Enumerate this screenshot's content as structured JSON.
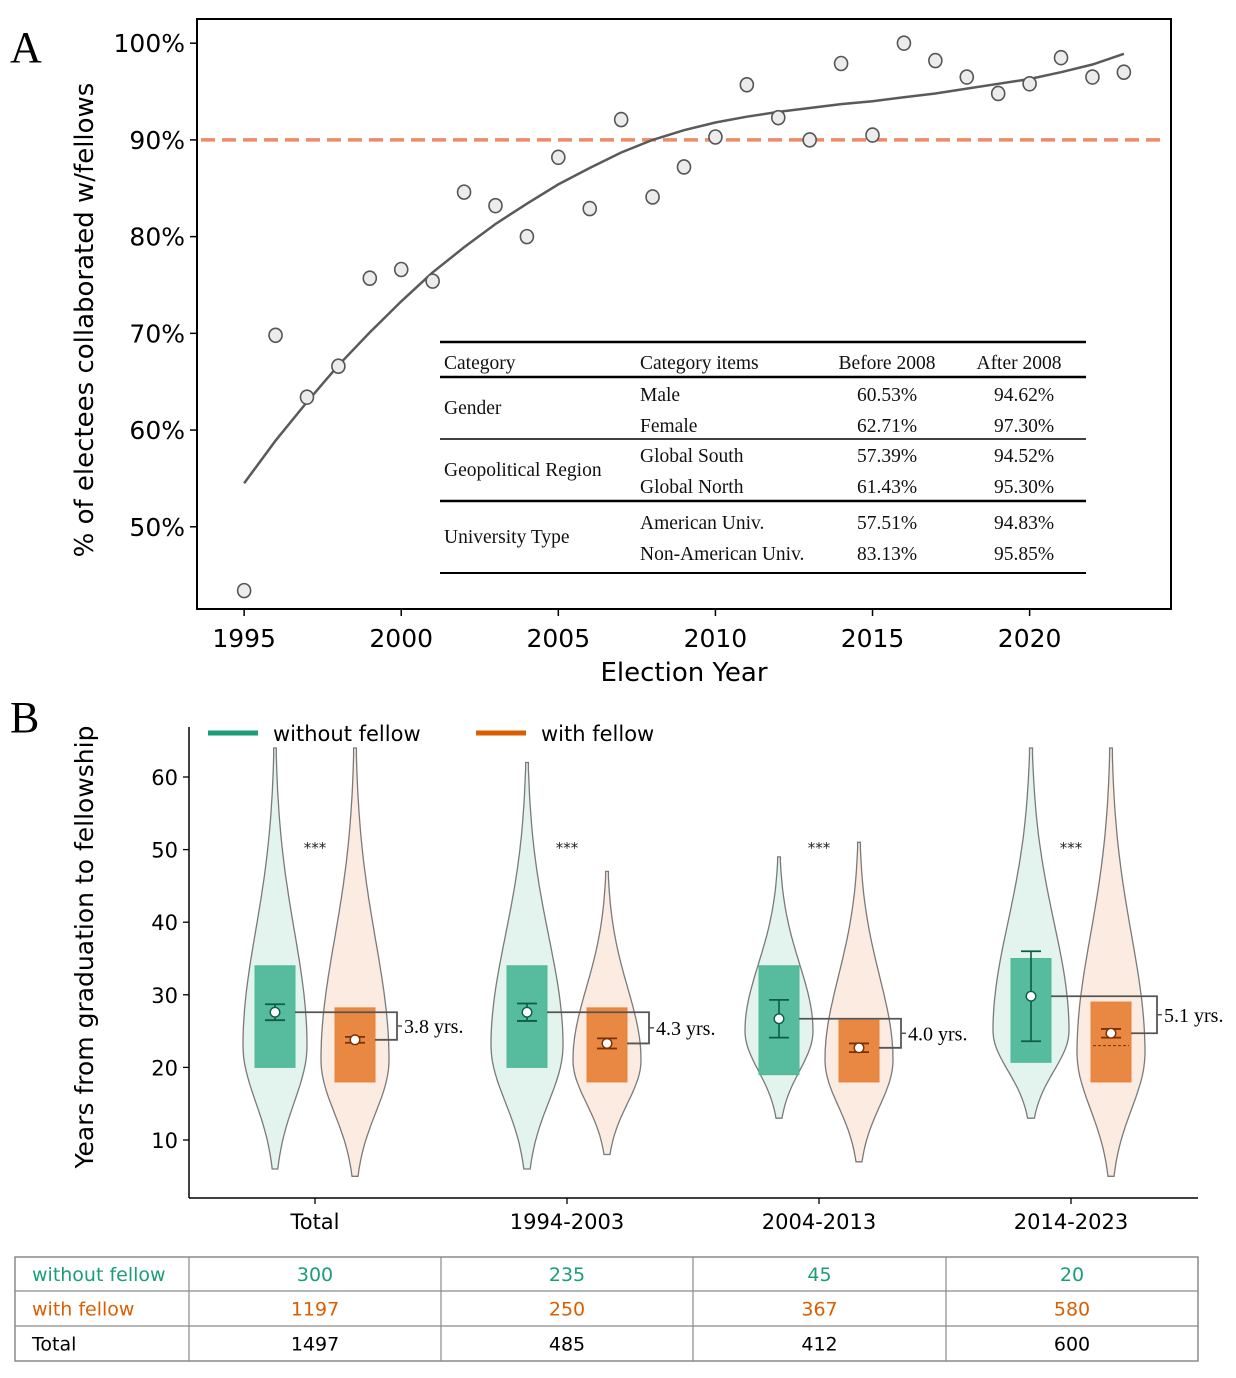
{
  "panel_labels": {
    "a": "A",
    "b": "B"
  },
  "colors": {
    "without_fellow": "#1b9e77",
    "with_fellow": "#d95f02",
    "without_box": "#4fb898",
    "with_box": "#e8833a",
    "without_violin": "#e3f3ee",
    "with_violin": "#fbebe0",
    "threshold": "#ee8a68",
    "trend": "#5a5a5a"
  },
  "chart_data": [
    {
      "id": "panel-a",
      "type": "scatter",
      "title": "",
      "xlabel": "Election Year",
      "ylabel": "% of electees collaborated w/fellows",
      "xlim": [
        1993.5,
        2024.5
      ],
      "ylim": [
        41.5,
        102.5
      ],
      "x_ticks": [
        1995,
        2000,
        2005,
        2010,
        2015,
        2020
      ],
      "y_ticks": [
        50,
        60,
        70,
        80,
        90,
        100
      ],
      "y_tick_labels": [
        "50%",
        "60%",
        "70%",
        "80%",
        "90%",
        "100%"
      ],
      "grid": false,
      "reference_line": {
        "y": 90,
        "style": "dashed"
      },
      "series": [
        {
          "name": "electees collaborated w/fellows",
          "x": [
            1995,
            1996,
            1997,
            1998,
            1999,
            2000,
            2001,
            2002,
            2003,
            2004,
            2005,
            2006,
            2007,
            2008,
            2009,
            2010,
            2011,
            2012,
            2013,
            2014,
            2015,
            2016,
            2017,
            2018,
            2019,
            2020,
            2021,
            2022,
            2023
          ],
          "y": [
            43.4,
            69.8,
            63.4,
            66.6,
            75.7,
            76.6,
            75.4,
            84.6,
            83.2,
            80.0,
            88.2,
            82.9,
            92.1,
            84.1,
            87.2,
            90.3,
            95.7,
            92.3,
            90.0,
            97.9,
            90.5,
            100.0,
            98.2,
            96.5,
            94.8,
            95.8,
            98.5,
            96.5,
            97.0
          ]
        },
        {
          "name": "trend",
          "type": "line",
          "x": [
            1995,
            1996,
            1997,
            1998,
            1999,
            2000,
            2001,
            2002,
            2003,
            2004,
            2005,
            2006,
            2007,
            2008,
            2009,
            2010,
            2011,
            2012,
            2013,
            2014,
            2015,
            2016,
            2017,
            2018,
            2019,
            2020,
            2021,
            2022,
            2023
          ],
          "y": [
            54.5,
            58.9,
            62.9,
            66.7,
            70.1,
            73.3,
            76.3,
            78.9,
            81.3,
            83.4,
            85.4,
            87.1,
            88.7,
            90.0,
            91.0,
            91.8,
            92.4,
            92.9,
            93.3,
            93.7,
            94.0,
            94.4,
            94.8,
            95.3,
            95.8,
            96.3,
            97.0,
            97.8,
            98.9
          ]
        }
      ],
      "inset_table": {
        "headers": [
          "Category",
          "Category items",
          "Before 2008",
          "After 2008"
        ],
        "groups": [
          {
            "category": "Gender",
            "rows": [
              {
                "item": "Male",
                "before": "60.53%",
                "after": "94.62%"
              },
              {
                "item": "Female",
                "before": "62.71%",
                "after": "97.30%"
              }
            ]
          },
          {
            "category": "Geopolitical Region",
            "rows": [
              {
                "item": "Global South",
                "before": "57.39%",
                "after": "94.52%"
              },
              {
                "item": "Global North",
                "before": "61.43%",
                "after": "95.30%"
              }
            ]
          },
          {
            "category": "University Type",
            "rows": [
              {
                "item": "American Univ.",
                "before": "57.51%",
                "after": "94.83%"
              },
              {
                "item": "Non-American Univ.",
                "before": "83.13%",
                "after": "95.85%"
              }
            ]
          }
        ]
      }
    },
    {
      "id": "panel-b",
      "type": "violin",
      "title": "",
      "xlabel": "",
      "ylabel": "Years from graduation to fellowship",
      "ylim": [
        2.5,
        66
      ],
      "y_ticks": [
        10,
        20,
        30,
        40,
        50,
        60
      ],
      "grid": false,
      "legend": {
        "placement": "top-left",
        "entries": [
          "without fellow",
          "with fellow"
        ]
      },
      "categories": [
        "Total",
        "1994-2003",
        "2004-2013",
        "2014-2023"
      ],
      "significance": [
        "***",
        "***",
        "***",
        "***"
      ],
      "differences": [
        "3.8 yrs.",
        "4.3 yrs.",
        "4.0 yrs.",
        "5.1 yrs."
      ],
      "series": [
        {
          "name": "without fellow",
          "min": [
            6,
            6,
            13,
            13
          ],
          "max": [
            64,
            62,
            49,
            64
          ],
          "q1": [
            20,
            20,
            19,
            20.7
          ],
          "q3": [
            34,
            34,
            34,
            35
          ],
          "mean": [
            27.6,
            27.6,
            26.7,
            29.8
          ],
          "ci_low": [
            26.5,
            26.4,
            24.1,
            23.6
          ],
          "ci_high": [
            28.7,
            28.8,
            29.3,
            36.0
          ],
          "density_mode": [
            23,
            23,
            25,
            25
          ],
          "shape_width": [
            0.8,
            0.9,
            0.85,
            0.95
          ]
        },
        {
          "name": "with fellow",
          "min": [
            5,
            8,
            7,
            5
          ],
          "max": [
            64,
            47,
            51,
            64
          ],
          "q1": [
            18,
            18,
            18,
            18
          ],
          "q3": [
            28.2,
            28.2,
            26.5,
            29
          ],
          "mean": [
            23.8,
            23.3,
            22.7,
            24.7
          ],
          "ci_low": [
            23.4,
            22.6,
            22.1,
            24.1
          ],
          "ci_high": [
            24.2,
            24.0,
            23.3,
            25.3
          ],
          "median_dashed": [
            null,
            null,
            null,
            23
          ],
          "density_mode": [
            21,
            21,
            21,
            22
          ],
          "shape_width": [
            0.85,
            0.85,
            0.85,
            0.85
          ]
        }
      ],
      "count_table": {
        "rows": [
          {
            "label": "without fellow",
            "values": [
              "300",
              "235",
              "45",
              "20"
            ],
            "color_key": "without_fellow"
          },
          {
            "label": "with fellow",
            "values": [
              "1197",
              "250",
              "367",
              "580"
            ],
            "color_key": "with_fellow"
          },
          {
            "label": "Total",
            "values": [
              "1497",
              "485",
              "412",
              "600"
            ],
            "color_key": "total"
          }
        ]
      }
    }
  ]
}
